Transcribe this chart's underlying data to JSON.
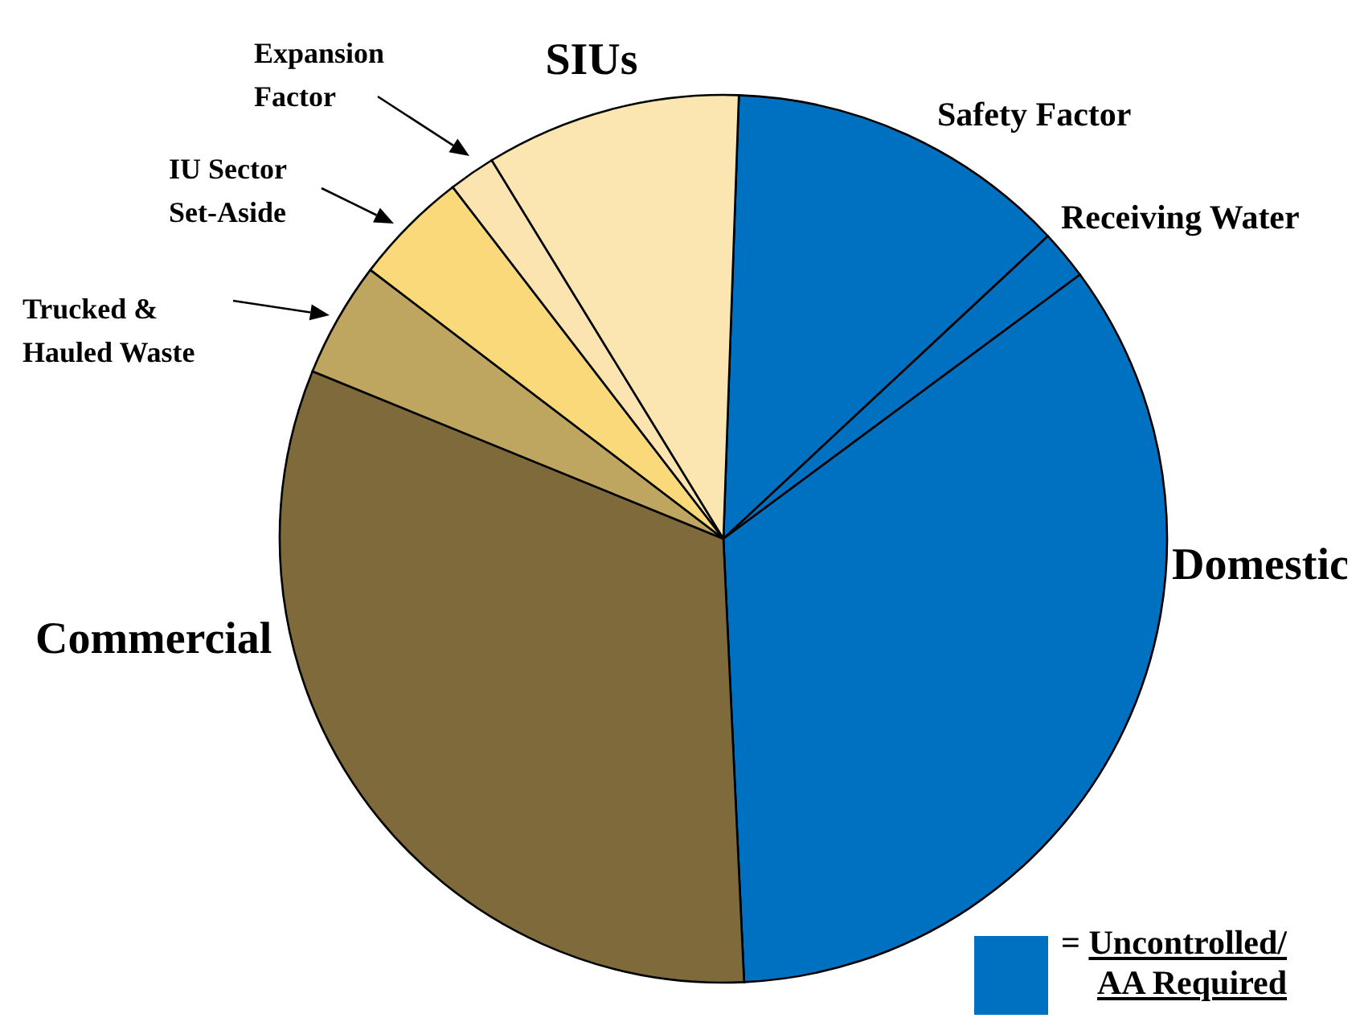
{
  "chart_data": {
    "type": "pie",
    "categories": [
      "Safety Factor",
      "Receiving Water",
      "Domestic",
      "Commercial",
      "Trucked & Hauled Waste",
      "IU Sector Set-Aside",
      "Expansion Factor",
      "SIUs"
    ],
    "values": [
      12.5,
      1.8,
      34.4,
      31.9,
      4.2,
      4.2,
      1.7,
      9.3
    ],
    "colors": [
      "#0070c0",
      "#0070c0",
      "#0070c0",
      "#7f6a3c",
      "#bfa660",
      "#f9d97a",
      "#fce4b0",
      "#fbe5b0"
    ],
    "annotations": [
      "= Uncontrolled/ AA Required"
    ]
  }
}
